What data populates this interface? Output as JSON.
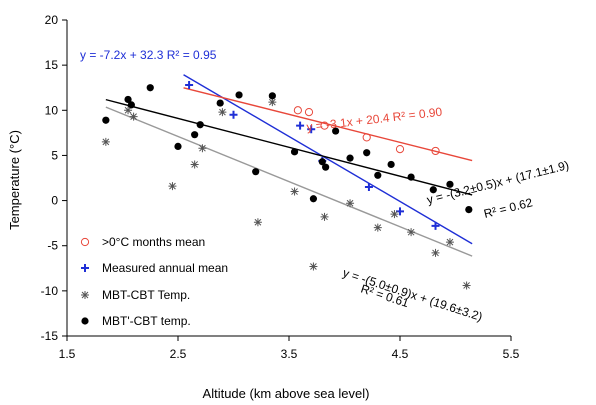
{
  "chart_data": {
    "type": "scatter",
    "xlabel": "Altitude (km above sea level)",
    "ylabel": "Temperature (°C)",
    "xlim": [
      1.5,
      5.5
    ],
    "ylim": [
      -15,
      20
    ],
    "xticks": [
      "1.5",
      "2.5",
      "3.5",
      "4.5",
      "5.5"
    ],
    "yticks": [
      "-15",
      "-10",
      "-5",
      "0",
      "5",
      "10",
      "15",
      "20"
    ],
    "grid": false,
    "legend_position": "bottom-left",
    "series": [
      {
        "name": ">0°C months mean",
        "marker": "open-circle",
        "color": "#e8473a",
        "points": [
          [
            3.58,
            10.0
          ],
          [
            3.68,
            9.8
          ],
          [
            3.82,
            8.3
          ],
          [
            4.2,
            7.0
          ],
          [
            4.5,
            5.7
          ],
          [
            4.82,
            5.5
          ]
        ]
      },
      {
        "name": "Measured annual mean",
        "marker": "plus",
        "color": "#1f2fd6",
        "points": [
          [
            2.6,
            12.8
          ],
          [
            3.0,
            9.5
          ],
          [
            3.6,
            8.3
          ],
          [
            3.7,
            7.9
          ],
          [
            3.8,
            4.4
          ],
          [
            4.22,
            1.5
          ],
          [
            4.5,
            -1.2
          ],
          [
            4.82,
            -2.8
          ]
        ]
      },
      {
        "name": "MBT-CBT Temp.",
        "marker": "asterisk",
        "color": "#555555",
        "points": [
          [
            1.85,
            6.5
          ],
          [
            2.05,
            10.0
          ],
          [
            2.1,
            9.3
          ],
          [
            2.45,
            1.6
          ],
          [
            2.65,
            4.0
          ],
          [
            2.72,
            5.8
          ],
          [
            2.9,
            9.8
          ],
          [
            3.22,
            -2.4
          ],
          [
            3.35,
            10.9
          ],
          [
            3.55,
            1.0
          ],
          [
            3.72,
            -7.3
          ],
          [
            3.82,
            -1.8
          ],
          [
            4.05,
            -0.3
          ],
          [
            4.3,
            -3.0
          ],
          [
            4.45,
            -1.5
          ],
          [
            4.6,
            -3.5
          ],
          [
            4.82,
            -5.8
          ],
          [
            4.95,
            -4.6
          ],
          [
            5.1,
            -9.4
          ]
        ]
      },
      {
        "name": "MBT'-CBT temp.",
        "marker": "filled-circle",
        "color": "#000000",
        "points": [
          [
            1.85,
            8.9
          ],
          [
            2.05,
            11.2
          ],
          [
            2.08,
            10.6
          ],
          [
            2.25,
            12.5
          ],
          [
            2.5,
            6.0
          ],
          [
            2.65,
            7.3
          ],
          [
            2.7,
            8.4
          ],
          [
            2.88,
            10.8
          ],
          [
            3.05,
            11.7
          ],
          [
            3.2,
            3.2
          ],
          [
            3.35,
            11.6
          ],
          [
            3.55,
            5.4
          ],
          [
            3.72,
            0.2
          ],
          [
            3.8,
            4.3
          ],
          [
            3.83,
            3.7
          ],
          [
            3.92,
            7.7
          ],
          [
            4.05,
            4.7
          ],
          [
            4.2,
            5.3
          ],
          [
            4.3,
            2.8
          ],
          [
            4.42,
            4.0
          ],
          [
            4.6,
            2.6
          ],
          [
            4.8,
            1.2
          ],
          [
            4.95,
            1.8
          ],
          [
            5.12,
            -1.0
          ]
        ]
      }
    ],
    "regressions": [
      {
        "label": "y = -7.2x + 32.3   R² = 0.95",
        "color": "#1f2fd6",
        "slope": -7.2,
        "intercept": 32.3,
        "x_range": [
          2.55,
          5.15
        ]
      },
      {
        "label": "y = -3.1x + 20.4   R² = 0.90",
        "color": "#e8473a",
        "slope": -3.1,
        "intercept": 20.4,
        "x_range": [
          2.55,
          5.15
        ]
      },
      {
        "label_line1": "y = -(3.2±0.5)x + (17.1±1.9)",
        "label_line2": "R² = 0.62",
        "color": "#000000",
        "slope": -3.2,
        "intercept": 17.1,
        "x_range": [
          1.85,
          5.15
        ]
      },
      {
        "label_line1": "y = -(5.0±0.9)x + (19.6±3.2)",
        "label_line2": "R² = 0.61",
        "color": "#999999",
        "slope": -5.0,
        "intercept": 19.6,
        "x_range": [
          1.85,
          5.15
        ]
      }
    ]
  }
}
